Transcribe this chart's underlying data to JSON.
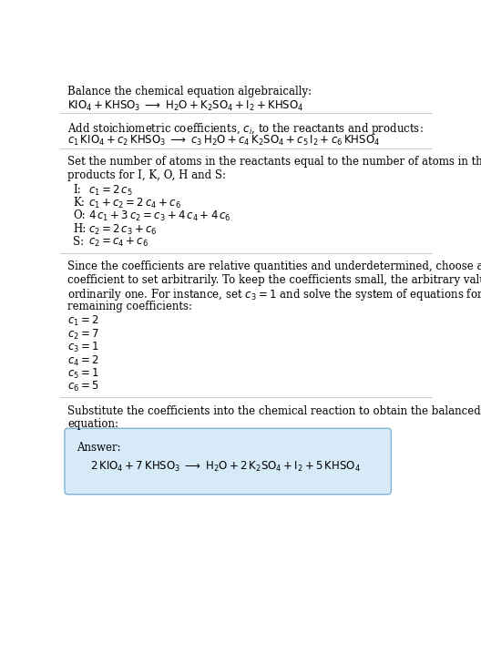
{
  "bg_color": "#ffffff",
  "text_color": "#000000",
  "answer_box_color": "#d6eaf8",
  "answer_box_edge": "#7fb3d3",
  "title_line1": "Balance the chemical equation algebraically:",
  "eq_line1": "$\\mathrm{KIO_4 + KHSO_3 \\;\\longrightarrow\\; H_2O + K_2SO_4 + I_2 + KHSO_4}$",
  "section2_intro": "Add stoichiometric coefficients, $c_i$, to the reactants and products:",
  "eq_line2": "$c_1\\,\\mathrm{KIO_4} + c_2\\,\\mathrm{KHSO_3} \\;\\longrightarrow\\; c_3\\,\\mathrm{H_2O} + c_4\\,\\mathrm{K_2SO_4} + c_5\\,\\mathrm{I_2} + c_6\\,\\mathrm{KHSO_4}$",
  "section3_intro1": "Set the number of atoms in the reactants equal to the number of atoms in the",
  "section3_intro2": "products for I, K, O, H and S:",
  "equations": [
    [
      "I:",
      "$c_1 = 2\\,c_5$"
    ],
    [
      "K:",
      "$c_1 + c_2 = 2\\,c_4 + c_6$"
    ],
    [
      "O:",
      "$4\\,c_1 + 3\\,c_2 = c_3 + 4\\,c_4 + 4\\,c_6$"
    ],
    [
      "H:",
      "$c_2 = 2\\,c_3 + c_6$"
    ],
    [
      "S:",
      "$c_2 = c_4 + c_6$"
    ]
  ],
  "section4_text1": "Since the coefficients are relative quantities and underdetermined, choose a",
  "section4_text2": "coefficient to set arbitrarily. To keep the coefficients small, the arbitrary value is",
  "section4_text3": "ordinarily one. For instance, set $c_3 = 1$ and solve the system of equations for the",
  "section4_text4": "remaining coefficients:",
  "coeff_values": [
    "$c_1 = 2$",
    "$c_2 = 7$",
    "$c_3 = 1$",
    "$c_4 = 2$",
    "$c_5 = 1$",
    "$c_6 = 5$"
  ],
  "section5_text1": "Substitute the coefficients into the chemical reaction to obtain the balanced",
  "section5_text2": "equation:",
  "answer_label": "Answer:",
  "answer_eq": "$2\\,\\mathrm{KIO_4} + 7\\,\\mathrm{KHSO_3} \\;\\longrightarrow\\; \\mathrm{H_2O} + 2\\,\\mathrm{K_2SO_4} + \\mathrm{I_2} + 5\\,\\mathrm{KHSO_4}$"
}
